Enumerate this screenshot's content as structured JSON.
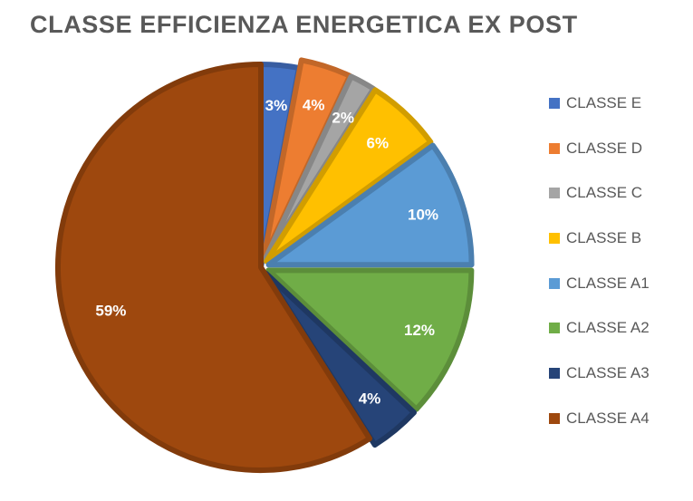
{
  "chart_data": {
    "type": "pie",
    "title": "CLASSE EFFICIENZA ENERGETICA EX POST",
    "categories": [
      "CLASSE E",
      "CLASSE D",
      "CLASSE C",
      "CLASSE B",
      "CLASSE A1",
      "CLASSE A2",
      "CLASSE A3",
      "CLASSE A4"
    ],
    "values": [
      3,
      4,
      2,
      6,
      10,
      12,
      4,
      59
    ],
    "labels": [
      "3%",
      "4%",
      "2%",
      "6%",
      "10%",
      "12%",
      "4%",
      "59%"
    ],
    "colors": [
      "#4472C4",
      "#ED7D31",
      "#A5A5A5",
      "#FFC000",
      "#5B9BD5",
      "#70AD47",
      "#264478",
      "#9E480E"
    ],
    "exploded": [
      "CLASSE D",
      "CLASSE C",
      "CLASSE B",
      "CLASSE A1",
      "CLASSE A2",
      "CLASSE A3"
    ],
    "legend_position": "right"
  }
}
